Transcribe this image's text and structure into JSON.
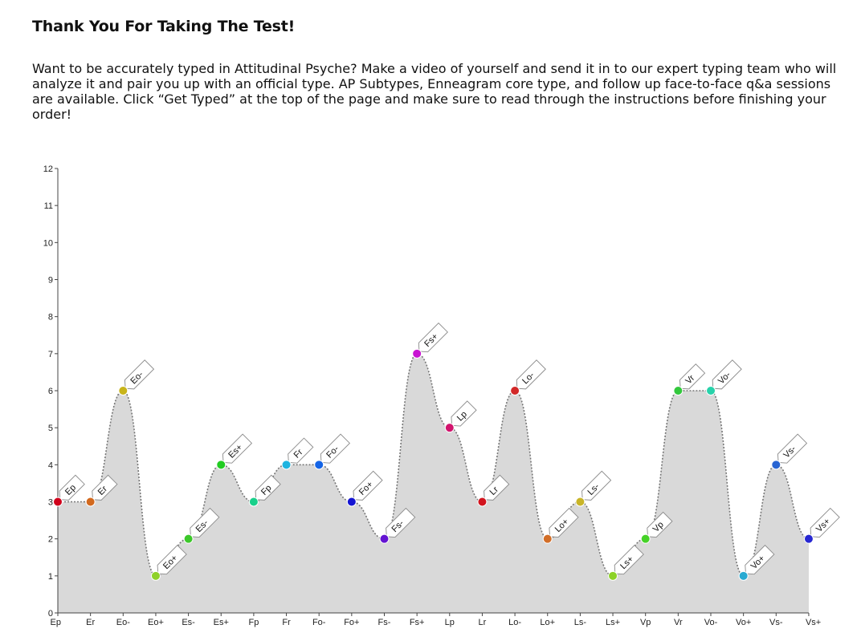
{
  "page": {
    "title": "Thank You For Taking The Test!",
    "intro": "Want to be accurately typed in Attitudinal Psyche? Make a video of yourself and send it in to our expert typing team who will analyze it and pair you up with an official type. AP Subtypes, Enneagram core type, and follow up face-to-face q&a sessions are available. Click “Get Typed” at the top of the page and make sure to read through the instructions before finishing your order!"
  },
  "chart_data": {
    "type": "area",
    "title": "",
    "xlabel": "",
    "ylabel": "",
    "ylim": [
      0,
      12
    ],
    "yticks": [
      0,
      1,
      2,
      3,
      4,
      5,
      6,
      7,
      8,
      9,
      10,
      11,
      12
    ],
    "grid": false,
    "fill_color": "#d9d9d9",
    "line_color": "#777777",
    "categories": [
      "Ep",
      "Er",
      "Eo-",
      "Eo+",
      "Es-",
      "Es+",
      "Fp",
      "Fr",
      "Fo-",
      "Fo+",
      "Fs-",
      "Fs+",
      "Lp",
      "Lr",
      "Lo-",
      "Lo+",
      "Ls-",
      "Ls+",
      "Vp",
      "Vr",
      "Vo-",
      "Vo+",
      "Vs-",
      "Vs+"
    ],
    "values": [
      3,
      3,
      6,
      1,
      2,
      4,
      3,
      4,
      4,
      3,
      2,
      7,
      5,
      3,
      6,
      2,
      3,
      1,
      2,
      6,
      6,
      1,
      4,
      2
    ],
    "point_colors": [
      "#d0021b",
      "#d2691e",
      "#c8b41a",
      "#8fd12a",
      "#3cc82a",
      "#22cc22",
      "#18d08a",
      "#1eb4e0",
      "#1464e6",
      "#1414d2",
      "#6414d2",
      "#c814d2",
      "#d2146e",
      "#d2141e",
      "#d22828",
      "#d26e28",
      "#c8b428",
      "#8cd228",
      "#46d228",
      "#32c83c",
      "#28d2aa",
      "#28aad2",
      "#2864d2",
      "#2828d2"
    ]
  }
}
